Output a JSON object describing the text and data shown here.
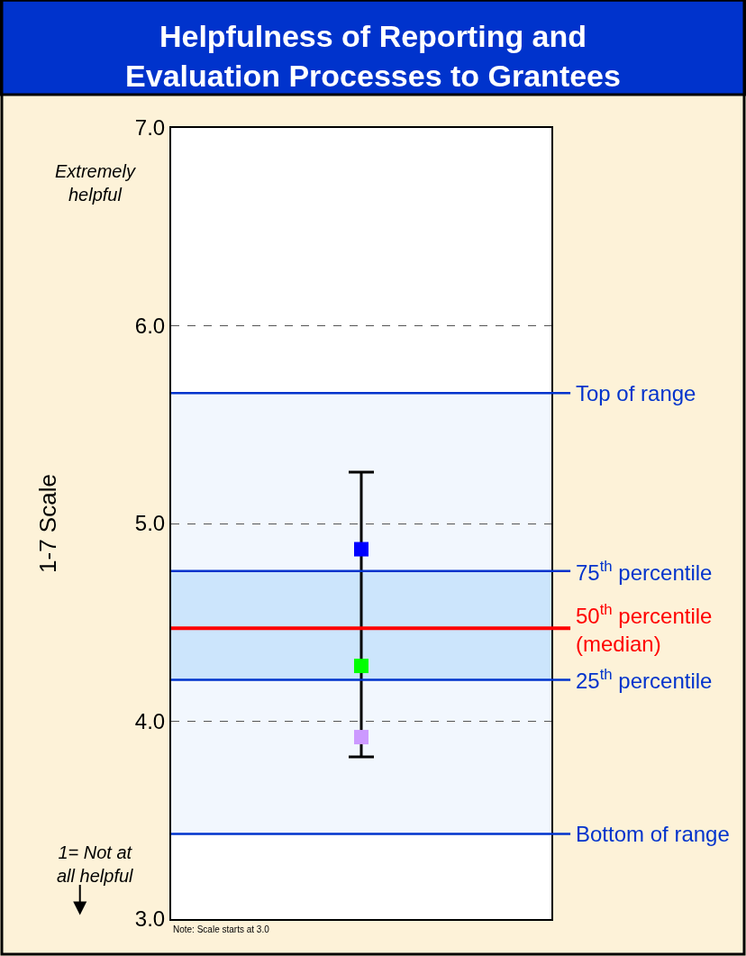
{
  "chart_data": {
    "type": "scatter",
    "title": "Helpfulness of Reporting and Evaluation Processes to Grantees",
    "ylabel": "1-7 Scale",
    "categories": [
      null
    ],
    "series": [
      {
        "color": "#00ff00",
        "values": [
          4.28
        ]
      },
      {
        "color": "#cc99ff",
        "values": [
          3.92
        ]
      },
      {
        "color": "#0000ff",
        "values": [
          4.87
        ],
        "errors": [
          [
            3.82,
            5.26
          ]
        ]
      }
    ],
    "ylim": [
      3.0,
      7.0
    ],
    "yticks": [
      {
        "value": 3,
        "label": "3.0"
      },
      {
        "value": 4,
        "label": "4.0"
      },
      {
        "value": 5,
        "label": "5.0"
      },
      {
        "value": 6,
        "label": "6.0"
      },
      {
        "value": 7,
        "label": "7.0"
      }
    ],
    "grid": "y",
    "marker": "square",
    "tick_labels": "y",
    "bands": [
      {
        "axis": "y",
        "from": 3.43,
        "to": 5.66,
        "color": "#f2f7fe"
      },
      {
        "axis": "y",
        "from": 4.21,
        "to": 4.76,
        "color": "#cce5fc"
      }
    ],
    "ref_lines": [
      {
        "axis": "y",
        "value": 5.66,
        "label": "Top of range",
        "color": "#0033cc"
      },
      {
        "axis": "y",
        "value": 4.76,
        "label": "75$^{th}$ percentile",
        "color": "#0033cc"
      },
      {
        "axis": "y",
        "value": 4.47,
        "label": "50$^{th}$ percentile (median)",
        "color": "#ff0000"
      },
      {
        "axis": "y",
        "value": 4.21,
        "label": "25$^{th}$ percentile",
        "color": "#0033cc"
      },
      {
        "axis": "y",
        "value": 3.43,
        "label": "Bottom of range",
        "color": "#0033cc"
      }
    ],
    "annotations": [
      "Extremely helpful",
      "1= Not at all helpful",
      "Note: Scale starts at 3.0"
    ]
  }
}
